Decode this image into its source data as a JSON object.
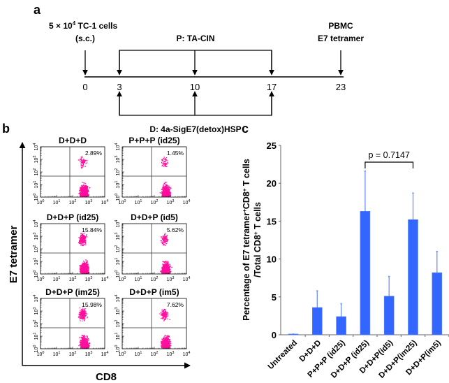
{
  "panel_a": {
    "label": "a",
    "top_left_line1": "5 × 10",
    "top_left_sup": "4",
    "top_left_line1_rest": " TC-1 cells",
    "top_left_line2": "(s.c.)",
    "p_label": "P: TA-CIN",
    "top_right_line1": "PBMC",
    "top_right_line2": "E7 tetramer",
    "d_label": "D: 4a-SigE7(detox)HSP",
    "days": [
      "0",
      "3",
      "10",
      "17",
      "23"
    ]
  },
  "panel_b": {
    "label": "b",
    "y_axis_label": "E7 tetramer",
    "x_axis_label": "CD8",
    "tick_base": "10",
    "tick_exponents": [
      "0",
      "1",
      "2",
      "3",
      "4"
    ],
    "plots": [
      {
        "title": "D+D+D",
        "percent": "2.89%"
      },
      {
        "title": "P+P+P (id25)",
        "percent": "1.45%"
      },
      {
        "title": "D+D+P (id25)",
        "percent": "15.84%"
      },
      {
        "title": "D+D+P (id5)",
        "percent": "5.62%"
      },
      {
        "title": "D+D+P (im25)",
        "percent": "15.98%"
      },
      {
        "title": "D+D+P (im5)",
        "percent": "7.62%"
      }
    ]
  },
  "colors": {
    "bar": "#3366ff",
    "error": "#6f8ff7",
    "dots": "#ff0f9e"
  },
  "chart_data": {
    "type": "bar",
    "panel_label": "c",
    "title": "",
    "xlabel": "",
    "ylabel_line1": "Percentage of E7 tetramer",
    "ylabel_sup1": "+",
    "ylabel_mid": "CD8",
    "ylabel_sup2": "+",
    "ylabel_end": " T cells",
    "ylabel_line2": "/Total CD8",
    "ylabel_sup3": "+",
    "ylabel_line2_end": " T cells",
    "ylim": [
      0,
      25
    ],
    "yticks": [
      "0",
      "5",
      "10",
      "15",
      "20",
      "25"
    ],
    "categories": [
      "Untreated",
      "D+D+D",
      "P+P+P (id25)",
      "D+D+P (id25)",
      "D+D+P(id5)",
      "D+D+P(im25)",
      "D+D+P(im5)"
    ],
    "values": [
      0.1,
      3.6,
      2.4,
      16.3,
      5.1,
      15.2,
      8.2
    ],
    "error_upper": [
      0.1,
      5.8,
      4.1,
      21.6,
      7.7,
      18.7,
      11.0
    ],
    "annotation": {
      "text": "p = 0.7147",
      "between": [
        "D+D+P (id25)",
        "D+D+P(im25)"
      ]
    },
    "grid": false,
    "legend": "none"
  }
}
